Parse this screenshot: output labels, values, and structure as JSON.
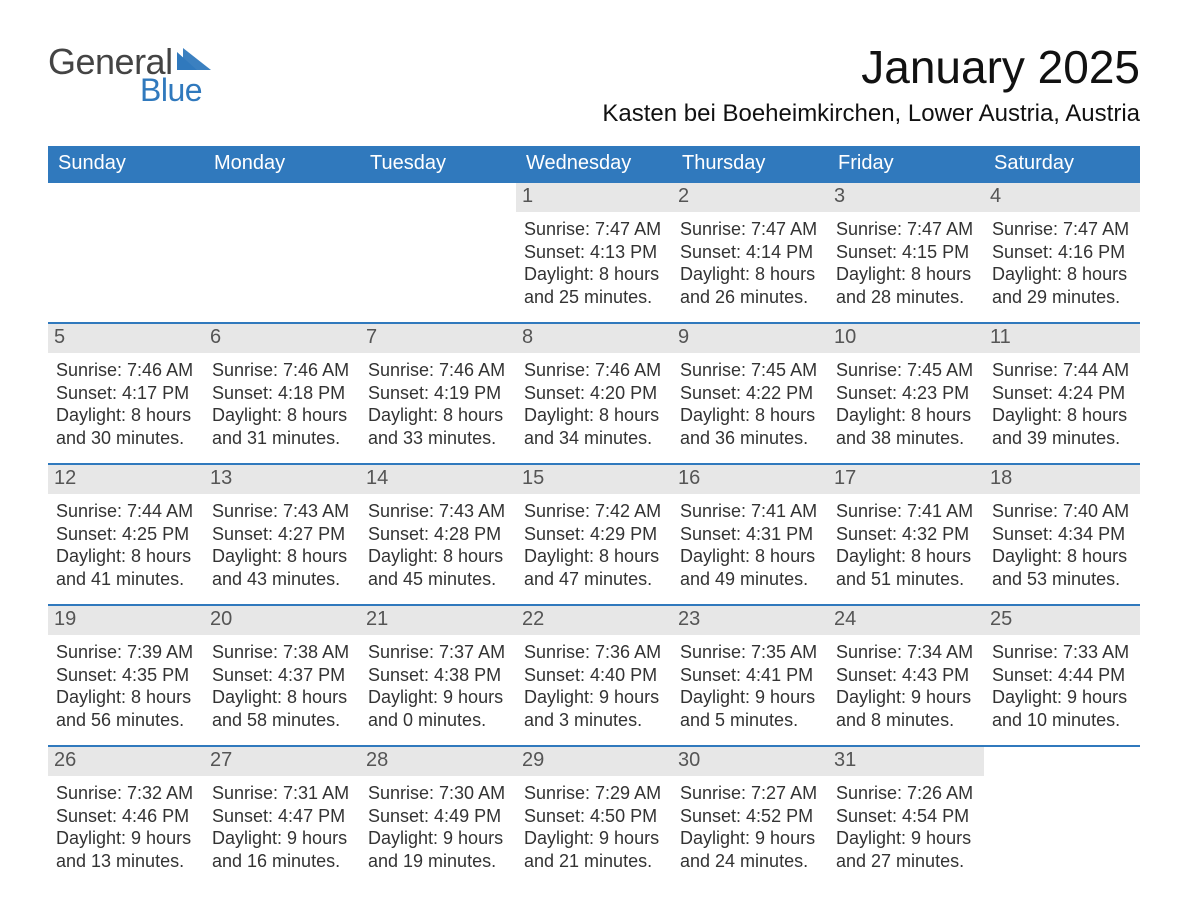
{
  "colors": {
    "header_bg": "#3079bd",
    "header_fg": "#ffffff",
    "daynum_bg": "#e7e7e7",
    "daynum_border": "#3079bd",
    "text": "#333333",
    "title": "#111111",
    "brand_general": "#444444",
    "brand_blue": "#3079bd",
    "page_bg": "#ffffff"
  },
  "brand": {
    "line1": "General",
    "line2": "Blue"
  },
  "title": "January 2025",
  "location": "Kasten bei Boeheimkirchen, Lower Austria, Austria",
  "weekdays": [
    "Sunday",
    "Monday",
    "Tuesday",
    "Wednesday",
    "Thursday",
    "Friday",
    "Saturday"
  ],
  "weeks": [
    [
      null,
      null,
      null,
      {
        "n": "1",
        "sunrise": "Sunrise: 7:47 AM",
        "sunset": "Sunset: 4:13 PM",
        "day1": "Daylight: 8 hours",
        "day2": "and 25 minutes."
      },
      {
        "n": "2",
        "sunrise": "Sunrise: 7:47 AM",
        "sunset": "Sunset: 4:14 PM",
        "day1": "Daylight: 8 hours",
        "day2": "and 26 minutes."
      },
      {
        "n": "3",
        "sunrise": "Sunrise: 7:47 AM",
        "sunset": "Sunset: 4:15 PM",
        "day1": "Daylight: 8 hours",
        "day2": "and 28 minutes."
      },
      {
        "n": "4",
        "sunrise": "Sunrise: 7:47 AM",
        "sunset": "Sunset: 4:16 PM",
        "day1": "Daylight: 8 hours",
        "day2": "and 29 minutes."
      }
    ],
    [
      {
        "n": "5",
        "sunrise": "Sunrise: 7:46 AM",
        "sunset": "Sunset: 4:17 PM",
        "day1": "Daylight: 8 hours",
        "day2": "and 30 minutes."
      },
      {
        "n": "6",
        "sunrise": "Sunrise: 7:46 AM",
        "sunset": "Sunset: 4:18 PM",
        "day1": "Daylight: 8 hours",
        "day2": "and 31 minutes."
      },
      {
        "n": "7",
        "sunrise": "Sunrise: 7:46 AM",
        "sunset": "Sunset: 4:19 PM",
        "day1": "Daylight: 8 hours",
        "day2": "and 33 minutes."
      },
      {
        "n": "8",
        "sunrise": "Sunrise: 7:46 AM",
        "sunset": "Sunset: 4:20 PM",
        "day1": "Daylight: 8 hours",
        "day2": "and 34 minutes."
      },
      {
        "n": "9",
        "sunrise": "Sunrise: 7:45 AM",
        "sunset": "Sunset: 4:22 PM",
        "day1": "Daylight: 8 hours",
        "day2": "and 36 minutes."
      },
      {
        "n": "10",
        "sunrise": "Sunrise: 7:45 AM",
        "sunset": "Sunset: 4:23 PM",
        "day1": "Daylight: 8 hours",
        "day2": "and 38 minutes."
      },
      {
        "n": "11",
        "sunrise": "Sunrise: 7:44 AM",
        "sunset": "Sunset: 4:24 PM",
        "day1": "Daylight: 8 hours",
        "day2": "and 39 minutes."
      }
    ],
    [
      {
        "n": "12",
        "sunrise": "Sunrise: 7:44 AM",
        "sunset": "Sunset: 4:25 PM",
        "day1": "Daylight: 8 hours",
        "day2": "and 41 minutes."
      },
      {
        "n": "13",
        "sunrise": "Sunrise: 7:43 AM",
        "sunset": "Sunset: 4:27 PM",
        "day1": "Daylight: 8 hours",
        "day2": "and 43 minutes."
      },
      {
        "n": "14",
        "sunrise": "Sunrise: 7:43 AM",
        "sunset": "Sunset: 4:28 PM",
        "day1": "Daylight: 8 hours",
        "day2": "and 45 minutes."
      },
      {
        "n": "15",
        "sunrise": "Sunrise: 7:42 AM",
        "sunset": "Sunset: 4:29 PM",
        "day1": "Daylight: 8 hours",
        "day2": "and 47 minutes."
      },
      {
        "n": "16",
        "sunrise": "Sunrise: 7:41 AM",
        "sunset": "Sunset: 4:31 PM",
        "day1": "Daylight: 8 hours",
        "day2": "and 49 minutes."
      },
      {
        "n": "17",
        "sunrise": "Sunrise: 7:41 AM",
        "sunset": "Sunset: 4:32 PM",
        "day1": "Daylight: 8 hours",
        "day2": "and 51 minutes."
      },
      {
        "n": "18",
        "sunrise": "Sunrise: 7:40 AM",
        "sunset": "Sunset: 4:34 PM",
        "day1": "Daylight: 8 hours",
        "day2": "and 53 minutes."
      }
    ],
    [
      {
        "n": "19",
        "sunrise": "Sunrise: 7:39 AM",
        "sunset": "Sunset: 4:35 PM",
        "day1": "Daylight: 8 hours",
        "day2": "and 56 minutes."
      },
      {
        "n": "20",
        "sunrise": "Sunrise: 7:38 AM",
        "sunset": "Sunset: 4:37 PM",
        "day1": "Daylight: 8 hours",
        "day2": "and 58 minutes."
      },
      {
        "n": "21",
        "sunrise": "Sunrise: 7:37 AM",
        "sunset": "Sunset: 4:38 PM",
        "day1": "Daylight: 9 hours",
        "day2": "and 0 minutes."
      },
      {
        "n": "22",
        "sunrise": "Sunrise: 7:36 AM",
        "sunset": "Sunset: 4:40 PM",
        "day1": "Daylight: 9 hours",
        "day2": "and 3 minutes."
      },
      {
        "n": "23",
        "sunrise": "Sunrise: 7:35 AM",
        "sunset": "Sunset: 4:41 PM",
        "day1": "Daylight: 9 hours",
        "day2": "and 5 minutes."
      },
      {
        "n": "24",
        "sunrise": "Sunrise: 7:34 AM",
        "sunset": "Sunset: 4:43 PM",
        "day1": "Daylight: 9 hours",
        "day2": "and 8 minutes."
      },
      {
        "n": "25",
        "sunrise": "Sunrise: 7:33 AM",
        "sunset": "Sunset: 4:44 PM",
        "day1": "Daylight: 9 hours",
        "day2": "and 10 minutes."
      }
    ],
    [
      {
        "n": "26",
        "sunrise": "Sunrise: 7:32 AM",
        "sunset": "Sunset: 4:46 PM",
        "day1": "Daylight: 9 hours",
        "day2": "and 13 minutes."
      },
      {
        "n": "27",
        "sunrise": "Sunrise: 7:31 AM",
        "sunset": "Sunset: 4:47 PM",
        "day1": "Daylight: 9 hours",
        "day2": "and 16 minutes."
      },
      {
        "n": "28",
        "sunrise": "Sunrise: 7:30 AM",
        "sunset": "Sunset: 4:49 PM",
        "day1": "Daylight: 9 hours",
        "day2": "and 19 minutes."
      },
      {
        "n": "29",
        "sunrise": "Sunrise: 7:29 AM",
        "sunset": "Sunset: 4:50 PM",
        "day1": "Daylight: 9 hours",
        "day2": "and 21 minutes."
      },
      {
        "n": "30",
        "sunrise": "Sunrise: 7:27 AM",
        "sunset": "Sunset: 4:52 PM",
        "day1": "Daylight: 9 hours",
        "day2": "and 24 minutes."
      },
      {
        "n": "31",
        "sunrise": "Sunrise: 7:26 AM",
        "sunset": "Sunset: 4:54 PM",
        "day1": "Daylight: 9 hours",
        "day2": "and 27 minutes."
      },
      null
    ]
  ]
}
